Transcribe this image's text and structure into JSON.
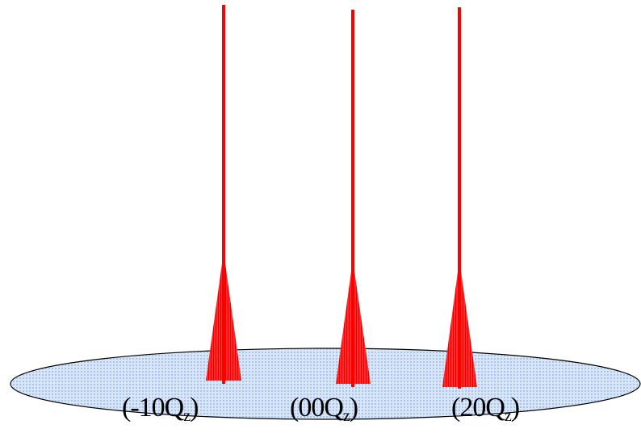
{
  "diagram": {
    "disk_color": "#c9dcf5",
    "disk_outline_color": "#000000",
    "rod_color": "#ff0000",
    "rods": [
      {
        "label_prefix": "(-10Q",
        "label_sub": "z",
        "label_suffix": ")"
      },
      {
        "label_prefix": "(00Q",
        "label_sub": "z",
        "label_suffix": ")"
      },
      {
        "label_prefix": "(20Q",
        "label_sub": "z",
        "label_suffix": ")"
      }
    ]
  }
}
